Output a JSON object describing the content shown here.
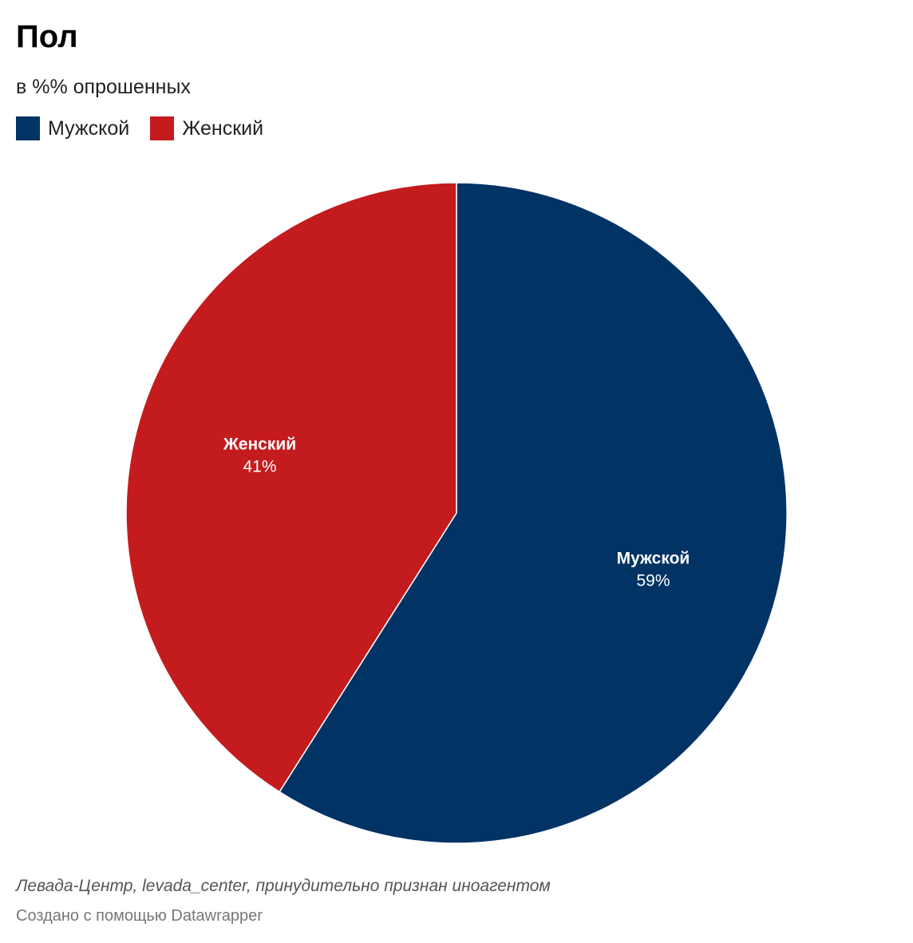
{
  "chart_data": {
    "type": "pie",
    "title": "Пол",
    "subtitle": "в %% опрошенных",
    "categories": [
      "Мужской",
      "Женский"
    ],
    "values": [
      59,
      41
    ],
    "value_labels": [
      "59%",
      "41%"
    ],
    "colors": [
      "#023365",
      "#c41c1e"
    ],
    "legend_position": "top-left"
  },
  "footer": {
    "source": "Левада-Центр, levada_center, принудительно признан иноагентом",
    "credit": "Создано с помощью Datawrapper"
  }
}
